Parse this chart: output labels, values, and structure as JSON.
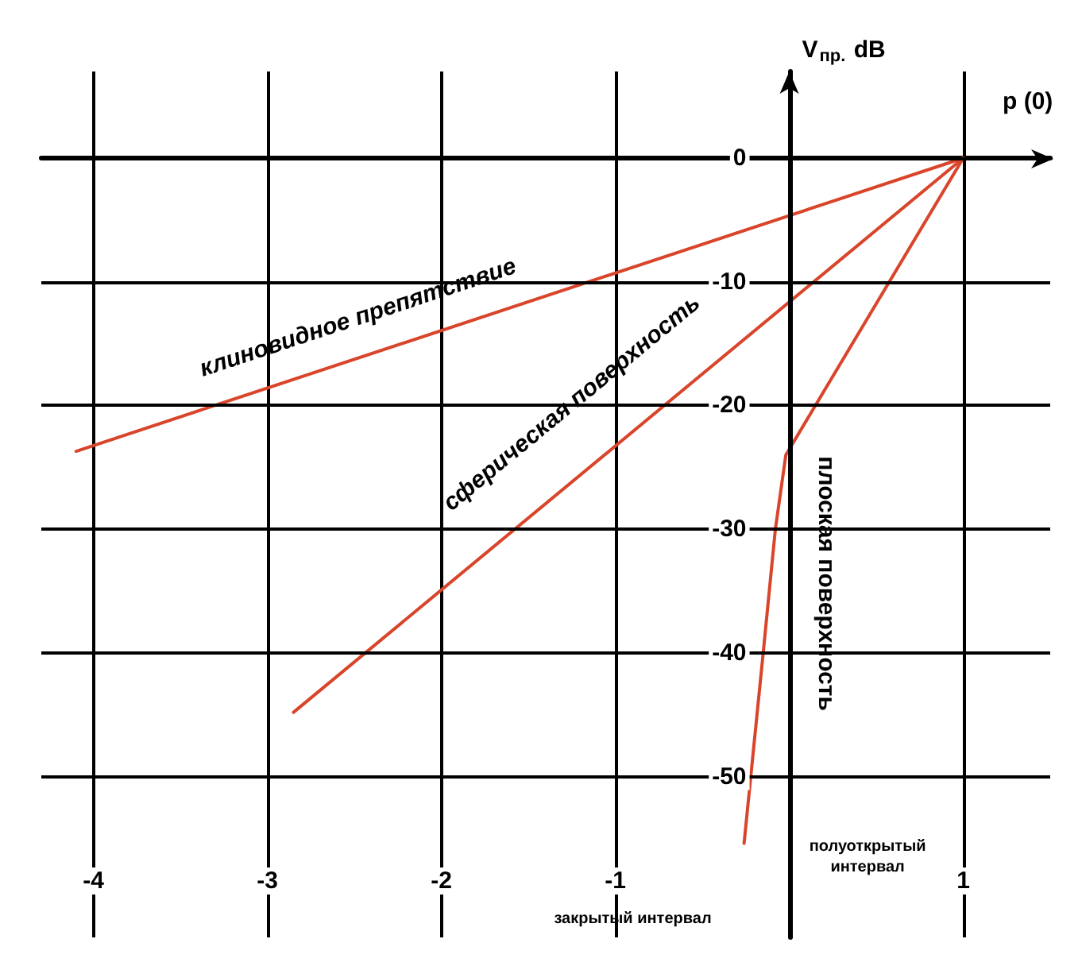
{
  "chart_data": {
    "type": "line",
    "xlabel": "p (0)",
    "ylabel": "V$_{пр.}$ dB",
    "xlim": [
      -4.3,
      1.5
    ],
    "ylim": [
      -63,
      7
    ],
    "xticks": [
      -4,
      -3,
      -2,
      -1,
      1
    ],
    "yticks": [
      -50,
      -40,
      -30,
      -20,
      -10,
      0
    ],
    "grid": true,
    "marker": "none",
    "line_style": "solid",
    "series": [
      {
        "color": "#d9452b",
        "x": [
          -4.1,
          1
        ],
        "values": [
          -23.7,
          0
        ]
      },
      {
        "color": "#d9452b",
        "x": [
          -2.85,
          1
        ],
        "values": [
          -44.8,
          0
        ]
      },
      {
        "color": "#d9452b",
        "x": [
          -0.26,
          -0.15,
          -0.08,
          -0.02,
          1
        ],
        "values": [
          -55.4,
          -40,
          -30,
          -24,
          0
        ]
      }
    ],
    "annotations": [
      "клиновидное препятствие",
      "сферическая поверхность",
      "плоская поверхность",
      "закрытый интервал",
      "полуоткрытый\nинтервал"
    ]
  }
}
